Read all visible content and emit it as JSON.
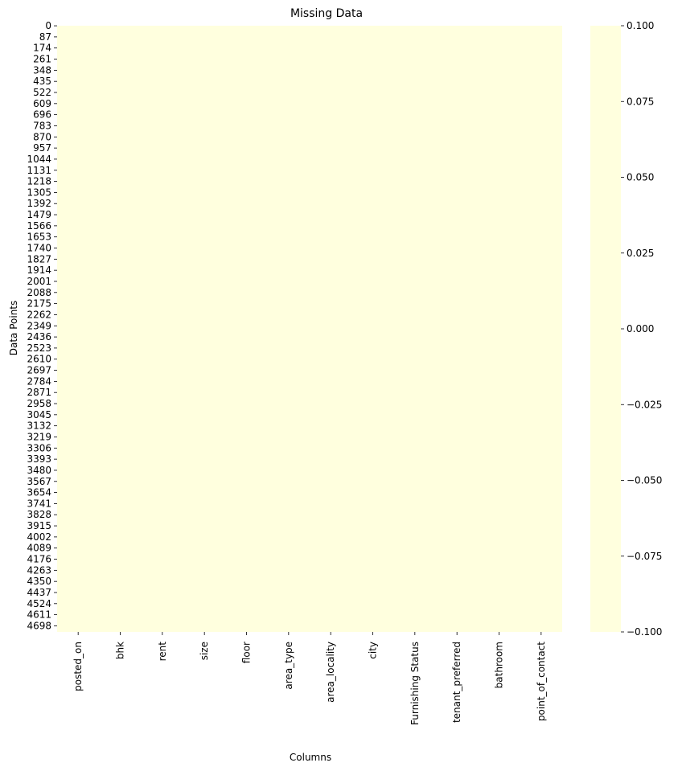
{
  "chart_data": {
    "type": "heatmap",
    "title": "Missing Data",
    "xlabel": "Columns",
    "ylabel": "Data Points",
    "x_categories": [
      "posted_on",
      "bhk",
      "rent",
      "size",
      "floor",
      "area_type",
      "area_locality",
      "city",
      "Furnishing Status",
      "tenant_preferred",
      "bathroom",
      "point_of_contact"
    ],
    "y_ticks": [
      "0",
      "87",
      "174",
      "261",
      "348",
      "435",
      "522",
      "609",
      "696",
      "783",
      "870",
      "957",
      "1044",
      "1131",
      "1218",
      "1305",
      "1392",
      "1479",
      "1566",
      "1653",
      "1740",
      "1827",
      "1914",
      "2001",
      "2088",
      "2175",
      "2262",
      "2349",
      "2436",
      "2523",
      "2610",
      "2697",
      "2784",
      "2871",
      "2958",
      "3045",
      "3132",
      "3219",
      "3306",
      "3393",
      "3480",
      "3567",
      "3654",
      "3741",
      "3828",
      "3915",
      "4002",
      "4089",
      "4176",
      "4263",
      "4350",
      "4437",
      "4524",
      "4611",
      "4698"
    ],
    "row_count": 4746,
    "values": "all cells = 0 (no missing data)",
    "colorbar": {
      "ticks": [
        "0.100",
        "0.075",
        "0.050",
        "0.025",
        "0.000",
        "−0.025",
        "−0.050",
        "−0.075",
        "−0.100"
      ],
      "vmin": -0.1,
      "vmax": 0.1
    },
    "cell_color": "#ffffde"
  }
}
